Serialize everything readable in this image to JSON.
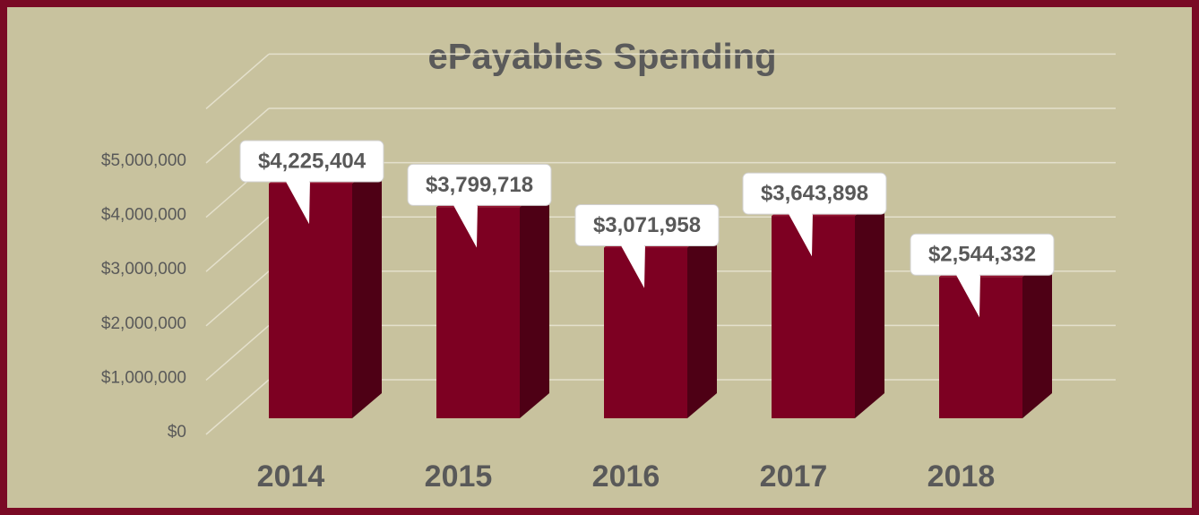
{
  "chart_data": {
    "type": "bar3d",
    "title": "ePayables Spending",
    "categories": [
      "2014",
      "2015",
      "2016",
      "2017",
      "2018"
    ],
    "values": [
      4225404,
      3799718,
      3071958,
      3643898,
      2544332
    ],
    "value_labels": [
      "$4,225,404",
      "$3,799,718",
      "$3,071,958",
      "$3,643,898",
      "$2,544,332"
    ],
    "color": "#7d0022",
    "ylim": [
      0,
      5000000
    ],
    "yticks": [
      {
        "value": 0,
        "label": "$0"
      },
      {
        "value": 1000000,
        "label": "$1,000,000"
      },
      {
        "value": 2000000,
        "label": "$2,000,000"
      },
      {
        "value": 3000000,
        "label": "$3,000,000"
      },
      {
        "value": 4000000,
        "label": "$4,000,000"
      },
      {
        "value": 5000000,
        "label": "$5,000,000"
      }
    ],
    "grid": true
  }
}
